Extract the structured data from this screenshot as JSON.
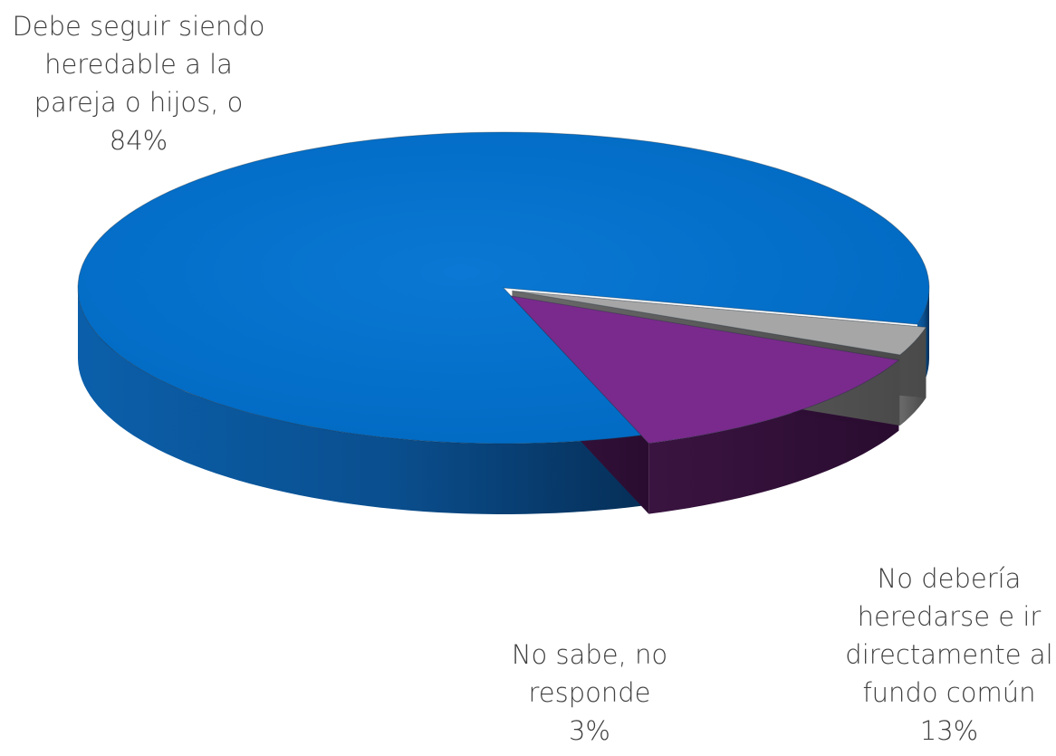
{
  "chart_data": {
    "type": "pie",
    "style": "3d-exploded",
    "slices": [
      {
        "label_lines": [
          "Debe seguir siendo",
          "heredable a la",
          "pareja o hijos, o"
        ],
        "value": 84,
        "value_label": "84%",
        "color": "#0070C8"
      },
      {
        "label_lines": [
          "No debería",
          "heredarse e ir",
          "directamente al",
          "fundo común"
        ],
        "value": 13,
        "value_label": "13%",
        "color": "#7A2A8C"
      },
      {
        "label_lines": [
          "No sabe, no",
          "responde"
        ],
        "value": 3,
        "value_label": "3%",
        "color": "#A6A6A6"
      }
    ]
  }
}
